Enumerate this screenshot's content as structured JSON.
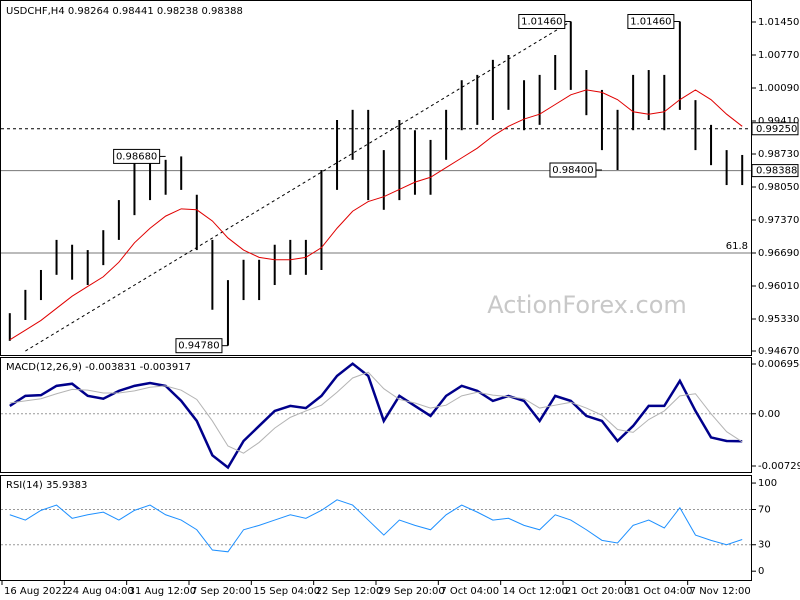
{
  "chart_data": [
    {
      "type": "ohlc",
      "title": "USDCHF,H4 0.98264 0.98441 0.98238 0.98388",
      "watermark": "ActionForex.com",
      "categories": [
        "16 Aug 2022",
        null,
        null,
        null,
        "24 Aug 04:00",
        null,
        null,
        null,
        "31 Aug 12:00",
        null,
        null,
        null,
        "7 Sep 20:00",
        null,
        null,
        null,
        "15 Sep 04:00",
        null,
        null,
        null,
        "22 Sep 12:00",
        null,
        null,
        null,
        "29 Sep 20:00",
        null,
        null,
        null,
        "7 Oct 04:00",
        null,
        null,
        null,
        "14 Oct 12:00",
        null,
        null,
        null,
        "21 Oct 20:00",
        null,
        null,
        null,
        "31 Oct 04:00",
        null,
        null,
        null,
        "7 Nov 12:00",
        null,
        null,
        null
      ],
      "high": [
        0.9545,
        0.9593,
        0.9634,
        0.9696,
        0.9686,
        0.9675,
        0.9716,
        0.9778,
        0.9861,
        0.9868,
        0.9861,
        0.9868,
        0.9789,
        0.9696,
        0.9613,
        0.9655,
        0.9655,
        0.9686,
        0.9696,
        0.9696,
        0.984,
        0.9943,
        0.9964,
        0.9964,
        0.9881,
        0.9943,
        0.9922,
        0.9902,
        0.9964,
        1.0025,
        1.0036,
        1.0067,
        1.0077,
        1.0025,
        1.0036,
        1.0077,
        1.0146,
        1.0046,
        1.0005,
        0.9964,
        1.0036,
        1.0046,
        1.0036,
        1.0146,
        0.9984,
        0.9933,
        0.9881,
        0.9871
      ],
      "low": [
        0.9488,
        0.9531,
        0.9572,
        0.9624,
        0.9614,
        0.9603,
        0.9644,
        0.9696,
        0.9747,
        0.9778,
        0.9789,
        0.9799,
        0.9675,
        0.9552,
        0.9478,
        0.9572,
        0.9572,
        0.9603,
        0.9624,
        0.9624,
        0.9634,
        0.9799,
        0.9861,
        0.9778,
        0.9758,
        0.9778,
        0.9789,
        0.9789,
        0.9861,
        0.9922,
        0.9933,
        0.9943,
        0.9964,
        0.9922,
        0.9933,
        1.0005,
        1.0005,
        0.9953,
        0.9881,
        0.984,
        0.9922,
        0.9943,
        0.9922,
        0.9964,
        0.9881,
        0.985,
        0.9809,
        0.9809
      ],
      "color": "#000000",
      "ma": {
        "color": "#e00000",
        "values": [
          0.949,
          0.951,
          0.953,
          0.9555,
          0.958,
          0.96,
          0.962,
          0.965,
          0.969,
          0.972,
          0.9745,
          0.976,
          0.9758,
          0.9735,
          0.97,
          0.9675,
          0.966,
          0.9655,
          0.9655,
          0.966,
          0.968,
          0.972,
          0.9755,
          0.9775,
          0.9785,
          0.98,
          0.9815,
          0.9825,
          0.9845,
          0.9865,
          0.9885,
          0.991,
          0.993,
          0.9945,
          0.9955,
          0.9975,
          0.9995,
          1.0005,
          1.0,
          0.9985,
          0.996,
          0.9955,
          0.996,
          0.9985,
          1.0005,
          0.9985,
          0.9955,
          0.993
        ]
      },
      "trendline": {
        "start": {
          "index": 1,
          "value": 0.9467
        },
        "end": {
          "index": 36,
          "value": 1.0146
        }
      },
      "levels": [
        {
          "value": 0.9925,
          "label": "0.99250",
          "style": "dashed",
          "label_position": "axis"
        },
        {
          "value": 0.98388,
          "label": "0.98388",
          "style": "solid",
          "label_position": "axis"
        },
        {
          "value": 0.9669,
          "label": "61.8",
          "style": "solid",
          "label_position": "line"
        }
      ],
      "annotations": [
        {
          "index": 36,
          "value": 1.0146,
          "label": "1.01460"
        },
        {
          "index": 43,
          "value": 1.0146,
          "label": "1.01460"
        },
        {
          "index": 10,
          "value": 0.9868,
          "label": "0.98680"
        },
        {
          "index": 14,
          "value": 0.9478,
          "label": "0.94780"
        },
        {
          "index": 38,
          "value": 0.984,
          "label": "0.98400"
        }
      ],
      "ylim": [
        0.94588,
        1.01862
      ],
      "yticks": [
        {
          "value": 1.0145,
          "label": "1.01450"
        },
        {
          "value": 1.0077,
          "label": "1.00770"
        },
        {
          "value": 1.0009,
          "label": "1.00090"
        },
        {
          "value": 0.9941,
          "label": "0.99410"
        },
        {
          "value": 0.9873,
          "label": "0.98730"
        },
        {
          "value": 0.9805,
          "label": "0.98050"
        },
        {
          "value": 0.9737,
          "label": "0.97370"
        },
        {
          "value": 0.9669,
          "label": "0.96690"
        },
        {
          "value": 0.9601,
          "label": "0.96010"
        },
        {
          "value": 0.9533,
          "label": "0.95330"
        },
        {
          "value": 0.9467,
          "label": "0.94670"
        }
      ]
    },
    {
      "type": "line",
      "title": "MACD(12,26,9) -0.003831 -0.003917",
      "series": [
        {
          "color": "#00008b",
          "width": 2.5,
          "values": [
            0.0011,
            0.0025,
            0.0026,
            0.0039,
            0.0042,
            0.0025,
            0.0021,
            0.0032,
            0.0039,
            0.0043,
            0.0039,
            0.0018,
            -0.001,
            -0.0058,
            -0.0075,
            -0.0038,
            -0.0017,
            0.0004,
            0.0011,
            0.0008,
            0.0025,
            0.0053,
            0.007,
            0.0053,
            -0.001,
            0.0025,
            0.0011,
            -0.0003,
            0.0025,
            0.0039,
            0.0032,
            0.0018,
            0.0025,
            0.0018,
            -0.001,
            0.0025,
            0.0018,
            -0.0003,
            -0.001,
            -0.0038,
            -0.0017,
            0.0011,
            0.0011,
            0.0046,
            0.0004,
            -0.0033,
            -0.0038,
            -0.003831
          ]
        },
        {
          "color": "#b4b4b4",
          "width": 1,
          "values": [
            0.0015,
            0.0018,
            0.0021,
            0.0028,
            0.0034,
            0.0033,
            0.0029,
            0.0029,
            0.0032,
            0.0037,
            0.0039,
            0.0033,
            0.002,
            -0.001,
            -0.0045,
            -0.0055,
            -0.004,
            -0.002,
            -0.0005,
            0.0004,
            0.0012,
            0.003,
            0.005,
            0.0058,
            0.0035,
            0.002,
            0.0015,
            0.0008,
            0.0012,
            0.0025,
            0.003,
            0.0026,
            0.0024,
            0.0021,
            0.0008,
            0.0012,
            0.0016,
            0.0008,
            -0.0002,
            -0.0022,
            -0.0026,
            -0.0008,
            0.0004,
            0.0025,
            0.0028,
            0.0,
            -0.0025,
            -0.003917
          ]
        }
      ],
      "ylim": [
        -0.00813,
        0.00779
      ],
      "yticks": [
        0.006954,
        {
          "value": 0,
          "label": "0.00"
        },
        -0.007294
      ],
      "dashed_levels": [
        0
      ]
    },
    {
      "type": "line",
      "title": "RSI(14) 35.9383",
      "series": [
        {
          "color": "#1e90ff",
          "width": 1,
          "values": [
            64,
            58,
            69,
            75,
            60,
            64,
            67,
            58,
            69,
            75,
            64,
            58,
            47,
            24,
            22,
            47,
            52,
            58,
            64,
            60,
            69,
            81,
            75,
            58,
            41,
            58,
            52,
            47,
            64,
            75,
            67,
            58,
            60,
            52,
            47,
            64,
            58,
            47,
            35,
            32,
            52,
            58,
            49,
            72,
            41,
            35,
            30,
            35.9383
          ]
        }
      ],
      "ylim": [
        -10,
        108
      ],
      "yticks": [
        100,
        70,
        30,
        0
      ],
      "dashed_levels": [
        70,
        30
      ]
    }
  ]
}
